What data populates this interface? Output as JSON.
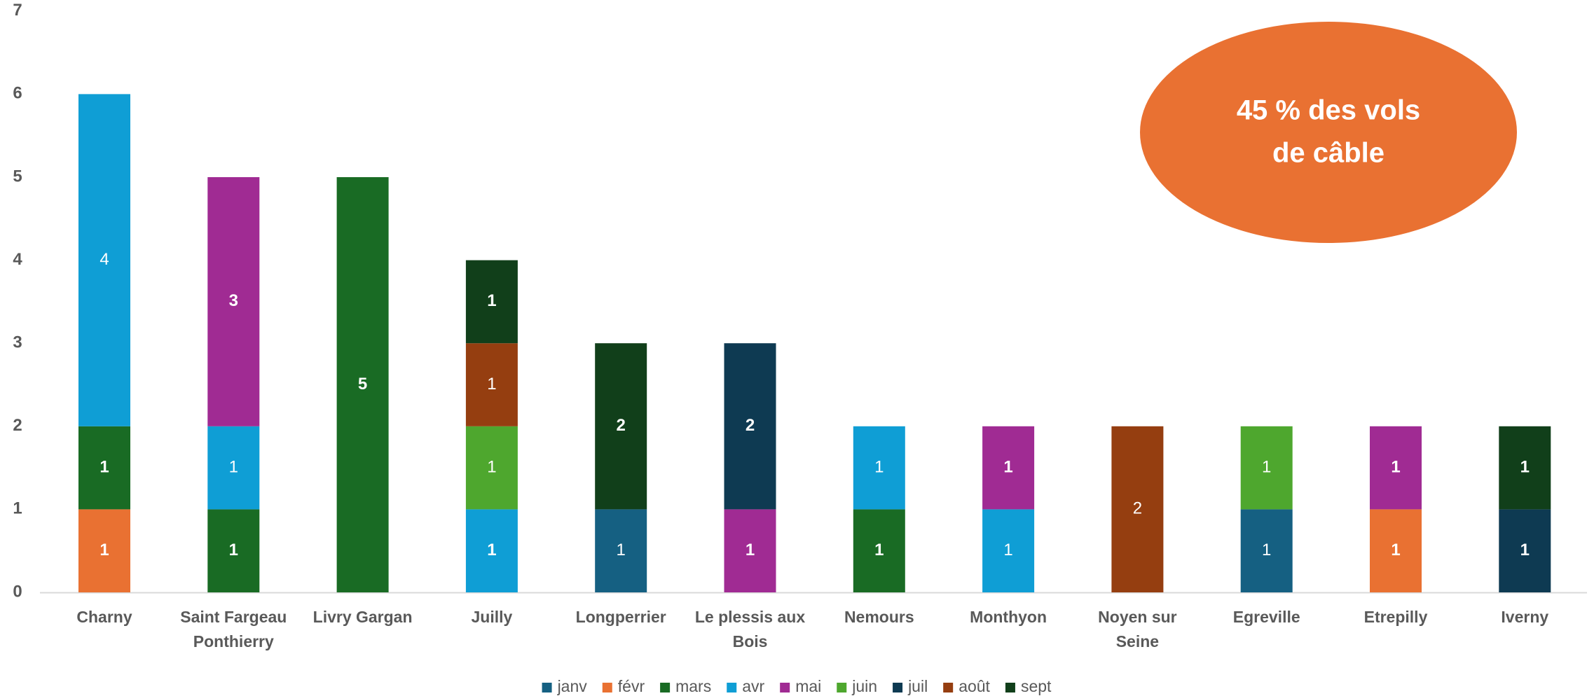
{
  "chart_data": {
    "type": "bar",
    "stacked": true,
    "title": "",
    "xlabel": "",
    "ylabel": "",
    "ylim": [
      0,
      7
    ],
    "yticks": [
      "0",
      "1",
      "2",
      "3",
      "4",
      "5",
      "6",
      "7"
    ],
    "grid": false,
    "legend_position": "bottom",
    "categories": [
      [
        "Charny"
      ],
      [
        "Saint Fargeau",
        "Ponthierry"
      ],
      [
        "Livry Gargan"
      ],
      [
        "Juilly"
      ],
      [
        "Longperrier"
      ],
      [
        "Le plessis aux",
        "Bois"
      ],
      [
        "Nemours"
      ],
      [
        "Monthyon"
      ],
      [
        "Noyen sur",
        "Seine"
      ],
      [
        "Egreville"
      ],
      [
        "Etrepilly"
      ],
      [
        "Iverny"
      ]
    ],
    "series": [
      {
        "name": "janv",
        "color": "#156082",
        "values": [
          0,
          0,
          0,
          0,
          1,
          0,
          0,
          0,
          0,
          1,
          0,
          0
        ]
      },
      {
        "name": "févr",
        "color": "#E97132",
        "values": [
          1,
          0,
          0,
          0,
          0,
          0,
          0,
          0,
          0,
          0,
          1,
          0
        ]
      },
      {
        "name": "mars",
        "color": "#196B24",
        "values": [
          1,
          1,
          5,
          0,
          0,
          0,
          1,
          0,
          0,
          0,
          0,
          0
        ]
      },
      {
        "name": "avr",
        "color": "#0F9ED5",
        "values": [
          4,
          1,
          0,
          1,
          0,
          0,
          1,
          1,
          0,
          0,
          0,
          0
        ]
      },
      {
        "name": "mai",
        "color": "#A02B93",
        "values": [
          0,
          3,
          0,
          0,
          0,
          1,
          0,
          1,
          0,
          0,
          1,
          0
        ]
      },
      {
        "name": "juin",
        "color": "#4EA72E",
        "values": [
          0,
          0,
          0,
          1,
          0,
          0,
          0,
          0,
          0,
          1,
          0,
          0
        ]
      },
      {
        "name": "juil",
        "color": "#0E3A52",
        "values": [
          0,
          0,
          0,
          0,
          0,
          2,
          0,
          0,
          0,
          0,
          0,
          1
        ]
      },
      {
        "name": "août",
        "color": "#953E10",
        "values": [
          0,
          0,
          0,
          1,
          0,
          0,
          0,
          0,
          2,
          0,
          0,
          0
        ]
      },
      {
        "name": "sept",
        "color": "#113F1A",
        "values": [
          0,
          0,
          0,
          1,
          2,
          0,
          0,
          0,
          0,
          0,
          0,
          1
        ]
      }
    ],
    "bold_labels": [
      [
        false,
        true,
        true,
        false,
        false,
        false,
        false,
        false,
        false
      ],
      [
        false,
        false,
        true,
        false,
        true,
        false,
        false,
        false,
        false
      ],
      [
        false,
        false,
        true,
        false,
        false,
        false,
        false,
        false,
        false
      ],
      [
        false,
        false,
        false,
        true,
        false,
        false,
        false,
        false,
        true
      ],
      [
        false,
        false,
        false,
        false,
        false,
        false,
        false,
        false,
        true
      ],
      [
        false,
        false,
        false,
        false,
        true,
        false,
        true,
        false,
        false
      ],
      [
        false,
        false,
        true,
        false,
        false,
        false,
        false,
        false,
        false
      ],
      [
        false,
        false,
        false,
        false,
        true,
        false,
        false,
        false,
        false
      ],
      [
        false,
        false,
        false,
        false,
        false,
        false,
        false,
        false,
        false
      ],
      [
        false,
        false,
        false,
        false,
        false,
        false,
        false,
        false,
        false
      ],
      [
        false,
        true,
        false,
        false,
        true,
        false,
        false,
        false,
        false
      ],
      [
        false,
        false,
        false,
        false,
        false,
        false,
        true,
        false,
        true
      ]
    ],
    "annotation": {
      "lines": [
        "45 % des vols",
        "de câble"
      ],
      "color": "#E97132"
    }
  }
}
